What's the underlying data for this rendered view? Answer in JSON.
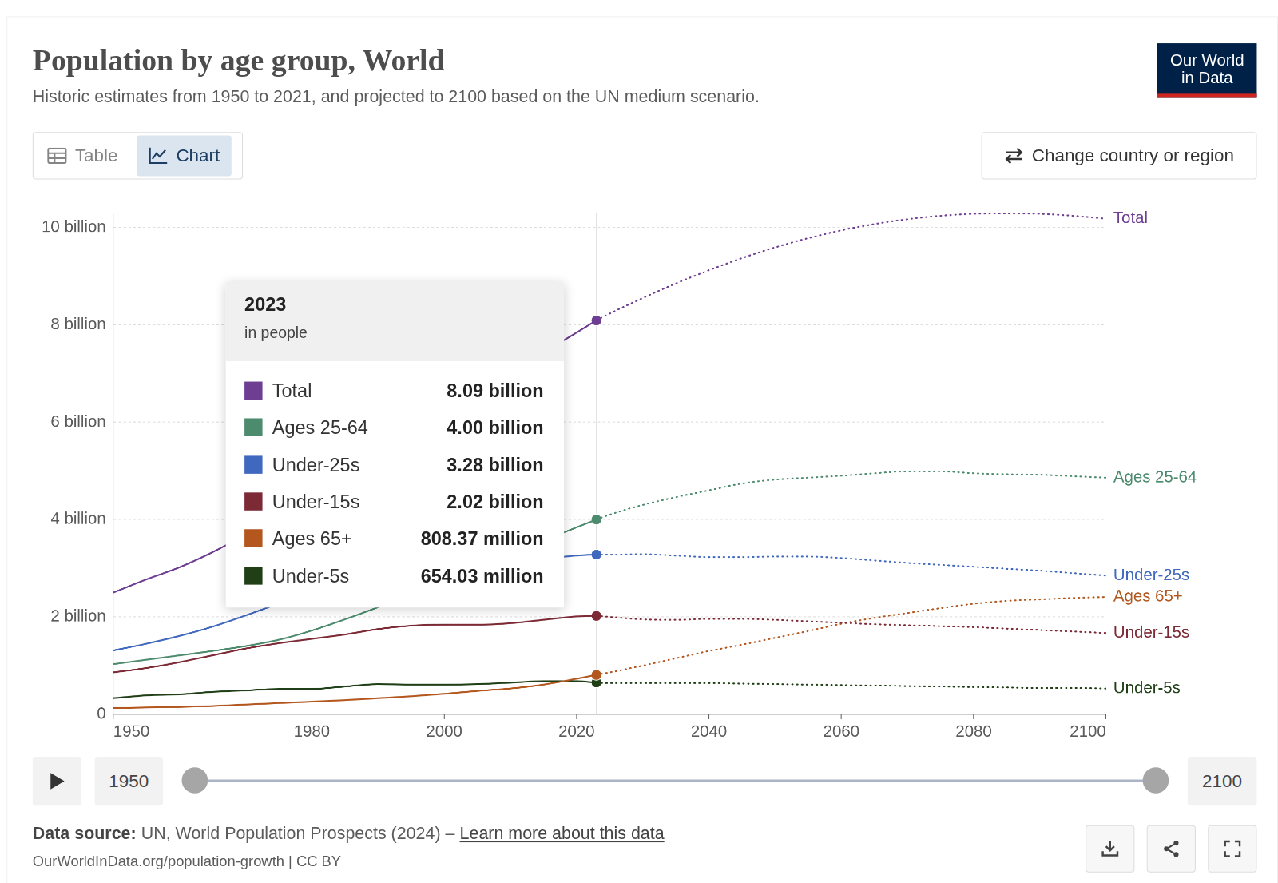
{
  "header": {
    "tabs": [
      "Table",
      "Chart"
    ],
    "active_tab": "Chart",
    "button": "Change country or region",
    "logo": [
      "Our World",
      "in Data"
    ]
  },
  "chart_data": {
    "type": "line",
    "title": "Population by age group, World",
    "subtitle": "Historic estimates from 1950 to 2021, and projected to 2100 based on the UN medium scenario.",
    "x": [
      1950,
      1955,
      1960,
      1965,
      1970,
      1975,
      1980,
      1985,
      1990,
      1995,
      2000,
      2005,
      2010,
      2015,
      2020,
      2023,
      2025,
      2030,
      2035,
      2040,
      2045,
      2050,
      2055,
      2060,
      2065,
      2070,
      2075,
      2080,
      2085,
      2090,
      2095,
      2100
    ],
    "xlim": [
      1950,
      2100
    ],
    "xticks": [
      1950,
      1980,
      2000,
      2020,
      2040,
      2060,
      2080,
      2100
    ],
    "ylim": [
      0,
      10.3
    ],
    "yticks": [
      0,
      {
        "value": 2,
        "label": "2 billion"
      },
      {
        "value": 4,
        "label": "4 billion"
      },
      {
        "value": 6,
        "label": "6 billion"
      },
      {
        "value": 8,
        "label": "8 billion"
      },
      {
        "value": 10,
        "label": "10 billion"
      }
    ],
    "grid": true,
    "series": [
      {
        "name": "Total",
        "color": "#6d3e91",
        "values": [
          2.5,
          2.77,
          3.02,
          3.33,
          3.69,
          4.06,
          4.44,
          4.86,
          5.33,
          5.74,
          6.15,
          6.56,
          6.99,
          7.43,
          7.84,
          8.09,
          8.23,
          8.55,
          8.85,
          9.12,
          9.37,
          9.59,
          9.78,
          9.94,
          10.07,
          10.17,
          10.24,
          10.28,
          10.29,
          10.28,
          10.24,
          10.18
        ]
      },
      {
        "name": "Ages 25-64",
        "color": "#4c8b6d",
        "values": [
          1.03,
          1.12,
          1.21,
          1.3,
          1.4,
          1.53,
          1.72,
          1.95,
          2.2,
          2.46,
          2.72,
          3.0,
          3.29,
          3.57,
          3.84,
          4.0,
          4.1,
          4.3,
          4.46,
          4.6,
          4.74,
          4.82,
          4.86,
          4.9,
          4.95,
          4.99,
          4.99,
          4.95,
          4.93,
          4.92,
          4.89,
          4.86
        ]
      },
      {
        "name": "Under-25s",
        "color": "#4168bf",
        "values": [
          1.31,
          1.45,
          1.61,
          1.8,
          2.03,
          2.27,
          2.47,
          2.66,
          2.86,
          3.0,
          3.07,
          3.12,
          3.16,
          3.2,
          3.26,
          3.28,
          3.28,
          3.29,
          3.26,
          3.23,
          3.23,
          3.24,
          3.24,
          3.21,
          3.16,
          3.11,
          3.07,
          3.03,
          2.99,
          2.95,
          2.9,
          2.85
        ]
      },
      {
        "name": "Under-15s",
        "color": "#7c2a36",
        "values": [
          0.86,
          0.95,
          1.07,
          1.21,
          1.35,
          1.46,
          1.55,
          1.64,
          1.75,
          1.82,
          1.84,
          1.84,
          1.87,
          1.94,
          2.01,
          2.02,
          2.0,
          1.95,
          1.94,
          1.96,
          1.96,
          1.94,
          1.91,
          1.88,
          1.85,
          1.83,
          1.81,
          1.79,
          1.76,
          1.73,
          1.7,
          1.67
        ]
      },
      {
        "name": "Ages 65+",
        "color": "#b3571e",
        "values": [
          0.13,
          0.14,
          0.15,
          0.17,
          0.2,
          0.23,
          0.26,
          0.29,
          0.33,
          0.37,
          0.42,
          0.48,
          0.53,
          0.61,
          0.73,
          0.81,
          0.86,
          1.0,
          1.15,
          1.3,
          1.43,
          1.57,
          1.71,
          1.86,
          1.98,
          2.08,
          2.18,
          2.27,
          2.33,
          2.36,
          2.39,
          2.41
        ]
      },
      {
        "name": "Under-5s",
        "color": "#213f17",
        "values": [
          0.33,
          0.39,
          0.41,
          0.46,
          0.49,
          0.52,
          0.52,
          0.57,
          0.62,
          0.61,
          0.61,
          0.62,
          0.65,
          0.68,
          0.68,
          0.65,
          0.64,
          0.64,
          0.64,
          0.64,
          0.63,
          0.62,
          0.61,
          0.6,
          0.59,
          0.58,
          0.57,
          0.56,
          0.55,
          0.54,
          0.54,
          0.53
        ]
      }
    ],
    "tooltip": {
      "year": 2023,
      "unit": "in people",
      "rows": [
        {
          "name": "Total",
          "value": 8.09,
          "label": "8.09 billion"
        },
        {
          "name": "Ages 25-64",
          "value": 4.0,
          "label": "4.00 billion"
        },
        {
          "name": "Under-25s",
          "value": 3.28,
          "label": "3.28 billion"
        },
        {
          "name": "Under-15s",
          "value": 2.02,
          "label": "2.02 billion"
        },
        {
          "name": "Ages 65+",
          "value": 0.80837,
          "label": "808.37 million"
        },
        {
          "name": "Under-5s",
          "value": 0.65403,
          "label": "654.03 million"
        }
      ]
    }
  },
  "footer": {
    "timeline": [
      1950,
      2100
    ],
    "source_label": "Data source:",
    "source": "UN, World Population Prospects (2024) –",
    "link": "Learn more about this data",
    "url": "OurWorldInData.org/population-growth | CC BY"
  }
}
